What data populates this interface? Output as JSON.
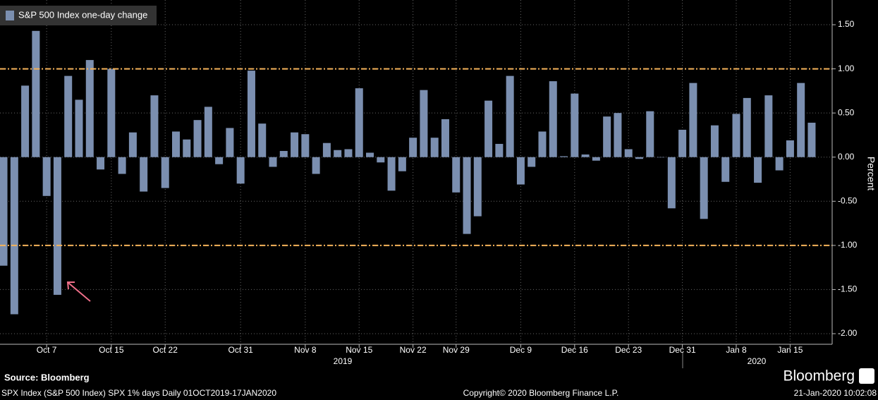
{
  "chart_data": {
    "type": "bar",
    "legend_label": "S&P 500 Index one-day change",
    "y_label": "Percent",
    "color": "#7b8fb0",
    "categories": [
      null,
      null,
      null,
      null,
      "Oct 7",
      null,
      null,
      null,
      null,
      null,
      "Oct 15",
      null,
      null,
      null,
      null,
      "Oct 22",
      null,
      null,
      null,
      null,
      null,
      null,
      "Oct 31",
      null,
      null,
      null,
      null,
      null,
      "Nov 8",
      null,
      null,
      null,
      null,
      "Nov 15",
      null,
      null,
      null,
      null,
      "Nov 22",
      null,
      null,
      null,
      "Nov 29",
      null,
      null,
      null,
      null,
      null,
      "Dec 9",
      null,
      null,
      null,
      null,
      "Dec 16",
      null,
      null,
      null,
      null,
      "Dec 23",
      null,
      null,
      null,
      null,
      "Dec 31",
      null,
      null,
      null,
      null,
      "Jan 8",
      null,
      null,
      null,
      null,
      "Jan 15",
      null,
      null
    ],
    "values": [
      -1.23,
      -1.78,
      0.81,
      1.43,
      -0.44,
      -1.56,
      0.92,
      0.65,
      1.1,
      -0.14,
      1.0,
      -0.19,
      0.28,
      -0.39,
      0.7,
      -0.35,
      0.29,
      0.2,
      0.42,
      0.57,
      -0.08,
      0.33,
      -0.3,
      0.98,
      0.38,
      -0.11,
      0.07,
      0.28,
      0.26,
      -0.19,
      0.16,
      0.08,
      0.09,
      0.78,
      0.05,
      -0.06,
      -0.38,
      -0.16,
      0.22,
      0.76,
      0.22,
      0.43,
      -0.4,
      -0.87,
      -0.67,
      0.64,
      0.15,
      0.92,
      -0.31,
      -0.11,
      0.29,
      0.86,
      0.01,
      0.72,
      0.03,
      -0.04,
      0.46,
      0.5,
      0.09,
      -0.02,
      0.52,
      0.0,
      -0.58,
      0.31,
      0.84,
      -0.7,
      0.36,
      -0.28,
      0.49,
      0.67,
      -0.29,
      0.7,
      -0.15,
      0.19,
      0.84,
      0.39
    ],
    "years": [
      "2019",
      "2020"
    ],
    "ylim": [
      -2.12,
      1.78
    ],
    "yticks": [
      {
        "value": 1.5,
        "label": "1.50"
      },
      {
        "value": 1,
        "label": "1.00"
      },
      {
        "value": 0.5,
        "label": "0.50"
      },
      {
        "value": 0,
        "label": "0.00"
      },
      {
        "value": -0.5,
        "label": "-0.50"
      },
      {
        "value": -1,
        "label": "-1.00"
      },
      {
        "value": -1.5,
        "label": "-1.50"
      },
      {
        "value": -2,
        "label": "-2.00"
      }
    ],
    "reference_lines": [
      1,
      -1
    ],
    "reference_color": "#f5b35a",
    "grid": true
  },
  "footer": {
    "source": "Source: Bloomberg",
    "brand": "Bloomberg",
    "description": "SPX Index (S&P 500 Index) SPX 1% days  Daily 01OCT2019-17JAN2020",
    "copyright": "Copyright© 2020 Bloomberg Finance L.P.",
    "timestamp": "21-Jan-2020 10:02:08"
  }
}
